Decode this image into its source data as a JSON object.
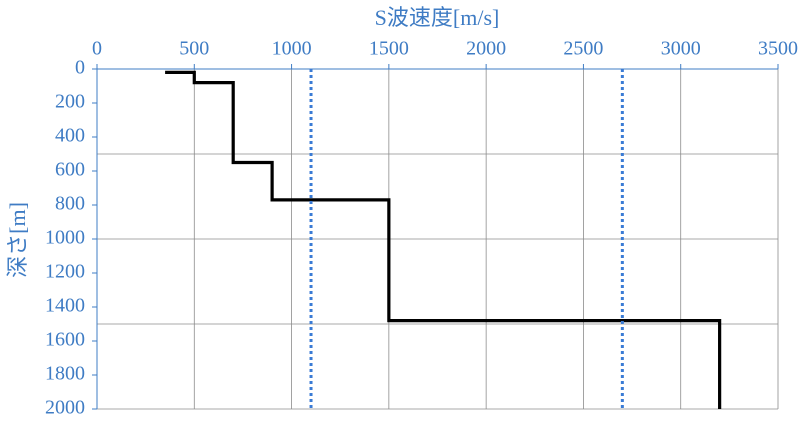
{
  "chart_data": {
    "type": "line",
    "xlabel": "S波速度[m/s]",
    "ylabel": "深さ[m]",
    "xlim": [
      0,
      3500
    ],
    "xticks": [
      0,
      500,
      1000,
      1500,
      2000,
      2500,
      3000,
      3500
    ],
    "ylim": [
      0,
      2000
    ],
    "yticks": [
      0,
      200,
      400,
      600,
      800,
      1000,
      1200,
      1400,
      1600,
      1800,
      2000
    ],
    "ygrid": [
      500,
      1000,
      1500,
      2000
    ],
    "y_inverted": true,
    "x_axis_position": "top",
    "grid": true,
    "series": [
      {
        "color": "#000000",
        "linestyle": "solid",
        "x": [
          350,
          500,
          500,
          700,
          700,
          900,
          900,
          1500,
          1500,
          3200,
          3200
        ],
        "values": [
          20,
          20,
          80,
          80,
          550,
          550,
          770,
          770,
          1480,
          1480,
          2000
        ]
      },
      {
        "color": "#3a7bd5",
        "linestyle": "dotted",
        "x": [
          1100,
          1100
        ],
        "values": [
          0,
          2000
        ]
      },
      {
        "color": "#3a7bd5",
        "linestyle": "dotted",
        "x": [
          2700,
          2700
        ],
        "values": [
          0,
          2000
        ]
      }
    ]
  }
}
